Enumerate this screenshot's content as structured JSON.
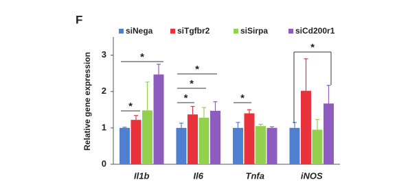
{
  "chart_data": {
    "type": "bar",
    "panel": "F",
    "ylabel": "Relative gene expression",
    "categories": [
      "Il1b",
      "Il6",
      "Tnfa",
      "iNOS"
    ],
    "series": [
      {
        "name": "siNega",
        "color": "#4f7fd0",
        "values": [
          1.0,
          1.0,
          1.0,
          1.0
        ],
        "errors": [
          0.02,
          0.13,
          0.15,
          0.15
        ]
      },
      {
        "name": "siTgfbr2",
        "color": "#e8323c",
        "values": [
          1.22,
          1.37,
          1.4,
          2.02
        ],
        "errors": [
          0.12,
          0.22,
          0.1,
          0.88
        ]
      },
      {
        "name": "siSirpa",
        "color": "#92d050",
        "values": [
          1.48,
          1.28,
          1.05,
          0.95
        ],
        "errors": [
          0.78,
          0.28,
          0.05,
          0.28
        ]
      },
      {
        "name": "siCd200r1",
        "color": "#8e5bbf",
        "values": [
          2.47,
          1.47,
          1.0,
          1.67
        ],
        "errors": [
          0.28,
          0.25,
          0.03,
          0.5
        ]
      }
    ],
    "significance": [
      "*",
      "*",
      "*",
      "*",
      "*",
      "*",
      "*"
    ],
    "ylim": [
      0,
      3.5
    ],
    "yticks": [
      0,
      1,
      2,
      3
    ]
  }
}
